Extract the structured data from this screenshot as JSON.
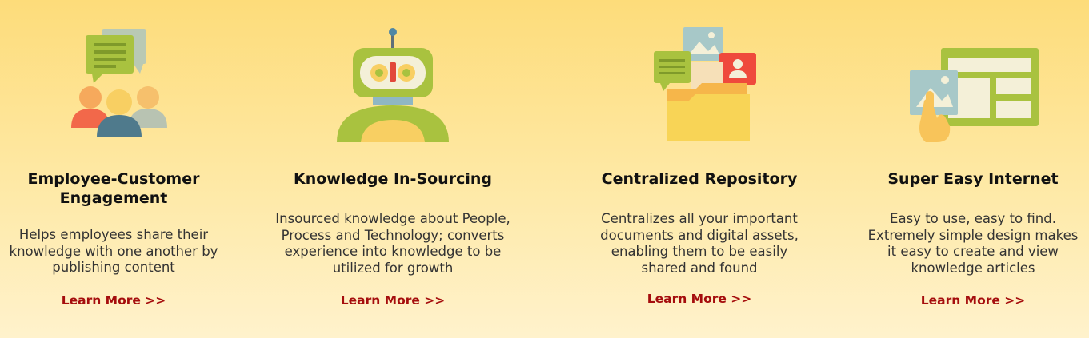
{
  "features": [
    {
      "title_line1": "Employee-Customer",
      "title_line2": "Engagement",
      "desc_lines": [
        "Helps employees share their",
        "knowledge with one another by",
        "publishing content"
      ],
      "link": "Learn More >>",
      "icon": "people-chat-icon"
    },
    {
      "title_line1": "Knowledge In-Sourcing",
      "desc_lines": [
        "Insourced knowledge about People,",
        "Process and Technology; converts",
        "experience into knowledge to be",
        "utilized for growth"
      ],
      "link": "Learn More >>",
      "icon": "robot-icon"
    },
    {
      "title_line1": "Centralized Repository",
      "desc_lines": [
        "Centralizes all your important",
        "documents and digital assets,",
        "enabling them to be easily",
        "shared and found"
      ],
      "link": "Learn More >>",
      "icon": "folder-documents-icon"
    },
    {
      "title_line1": "Super Easy Internet",
      "desc_lines": [
        "Easy to use, easy to find.",
        "Extremely simple design makes",
        "it easy to create and view",
        "knowledge articles"
      ],
      "link": "Learn More >>",
      "icon": "web-layout-touch-icon"
    }
  ],
  "colors": {
    "link": "#a50d0d",
    "background_top": "#fddc7a",
    "background_bottom": "#fff2cc"
  }
}
